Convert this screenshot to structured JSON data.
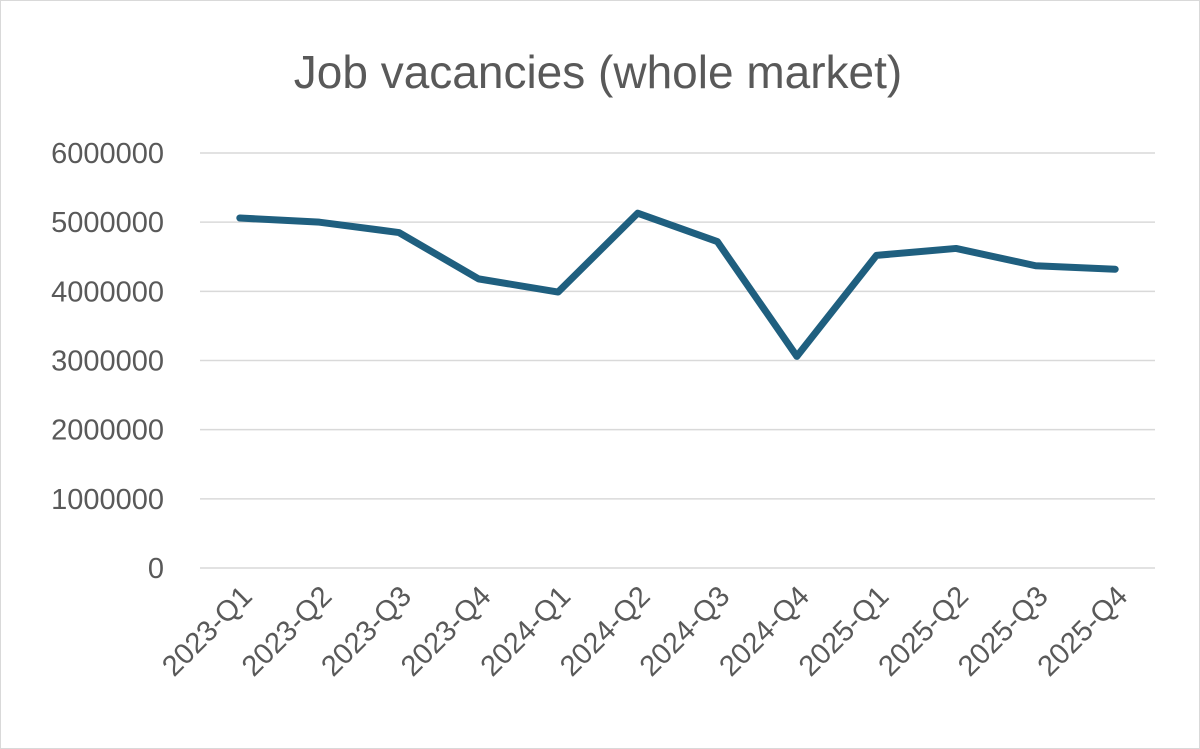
{
  "chart_data": {
    "type": "line",
    "title": "Job vacancies (whole market)",
    "xlabel": "",
    "ylabel": "",
    "categories": [
      "2023-Q1",
      "2023-Q2",
      "2023-Q3",
      "2023-Q4",
      "2024-Q1",
      "2024-Q2",
      "2024-Q3",
      "2024-Q4",
      "2025-Q1",
      "2025-Q2",
      "2025-Q3",
      "2025-Q4"
    ],
    "series": [
      {
        "values": [
          5060000,
          5000000,
          4850000,
          4180000,
          3990000,
          5130000,
          4720000,
          3060000,
          4520000,
          4620000,
          4370000,
          4320000
        ],
        "color": "#1f5f7f"
      }
    ],
    "ylim": [
      0,
      6000000
    ],
    "yticks": [
      "0",
      "1000000",
      "2000000",
      "3000000",
      "4000000",
      "5000000",
      "6000000"
    ],
    "grid": true,
    "legend": "none"
  }
}
